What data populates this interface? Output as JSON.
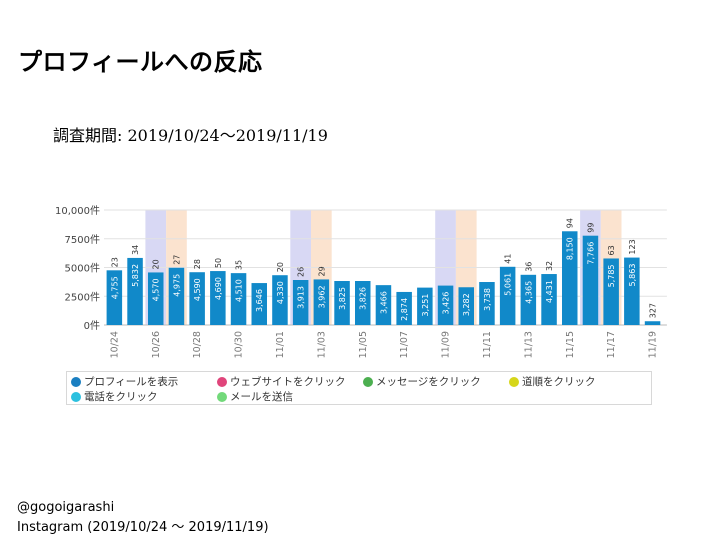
{
  "page": {
    "title": "プロフィールへの反応",
    "period": "調査期間: 2019/10/24～2019/11/19"
  },
  "chart_data": {
    "type": "bar",
    "y_ticks": [
      "0件",
      "2500件",
      "5000件",
      "7500件",
      "10,000件"
    ],
    "ylim": [
      0,
      10000
    ],
    "x_tick_labels": [
      "10/24",
      "10/26",
      "10/28",
      "10/30",
      "11/01",
      "11/03",
      "11/05",
      "11/07",
      "11/09",
      "11/11",
      "11/13",
      "11/15",
      "11/17",
      "11/19"
    ],
    "categories": [
      "10/24",
      "10/25",
      "10/26",
      "10/27",
      "10/28",
      "10/29",
      "10/30",
      "10/31",
      "11/01",
      "11/02",
      "11/03",
      "11/04",
      "11/05",
      "11/06",
      "11/07",
      "11/08",
      "11/09",
      "11/10",
      "11/11",
      "11/12",
      "11/13",
      "11/14",
      "11/15",
      "11/16",
      "11/17",
      "11/18",
      "11/19"
    ],
    "series": [
      {
        "name": "プロフィールを表示",
        "values": [
          4755,
          5832,
          4570,
          4975,
          4590,
          4690,
          4510,
          3646,
          4330,
          3913,
          3962,
          3825,
          3826,
          3466,
          2874,
          3251,
          3426,
          3282,
          3738,
          5061,
          4365,
          4431,
          8150,
          7766,
          5785,
          5863,
          327
        ],
        "value_labels": [
          "4,755",
          "5,832",
          "4,570",
          "4,975",
          "4,590",
          "4,690",
          "4,510",
          "3,646",
          "4,330",
          "3,913",
          "3,962",
          "3,825",
          "3,826",
          "3,466",
          "2,874",
          "3,251",
          "3,426",
          "3,282",
          "3,738",
          "5,061",
          "4,365",
          "4,431",
          "8,150",
          "7,766",
          "5,785",
          "5,863",
          "327"
        ],
        "top_labels": [
          "23",
          "34",
          "20",
          "27",
          "28",
          "50",
          "35",
          "",
          "20",
          "26",
          "29",
          "",
          "",
          "",
          "",
          "",
          "",
          "",
          "",
          "41",
          "36",
          "32",
          "94",
          "99",
          "63",
          "123",
          ""
        ]
      }
    ],
    "weekend_highlights": [
      {
        "index": 2,
        "color": "#d8d8f4"
      },
      {
        "index": 3,
        "color": "#fbe3cf"
      },
      {
        "index": 9,
        "color": "#d8d8f4"
      },
      {
        "index": 10,
        "color": "#fbe3cf"
      },
      {
        "index": 16,
        "color": "#d8d8f4"
      },
      {
        "index": 17,
        "color": "#fbe3cf"
      },
      {
        "index": 23,
        "color": "#d8d8f4"
      },
      {
        "index": 24,
        "color": "#fbe3cf"
      }
    ],
    "bar_color": "#1189c9",
    "legend": [
      {
        "label": "プロフィールを表示",
        "color": "#1a7fc1"
      },
      {
        "label": "ウェブサイトをクリック",
        "color": "#e0457b"
      },
      {
        "label": "メッセージをクリック",
        "color": "#4caf50"
      },
      {
        "label": "道順をクリック",
        "color": "#d6d61a"
      },
      {
        "label": "電話をクリック",
        "color": "#2cc0df"
      },
      {
        "label": "メールを送信",
        "color": "#72d97a"
      }
    ],
    "legend_placement": "bottom",
    "grid": true
  },
  "footer": {
    "line1": "@gogoigarashi",
    "line2": "Instagram (2019/10/24 ～ 2019/11/19)"
  }
}
